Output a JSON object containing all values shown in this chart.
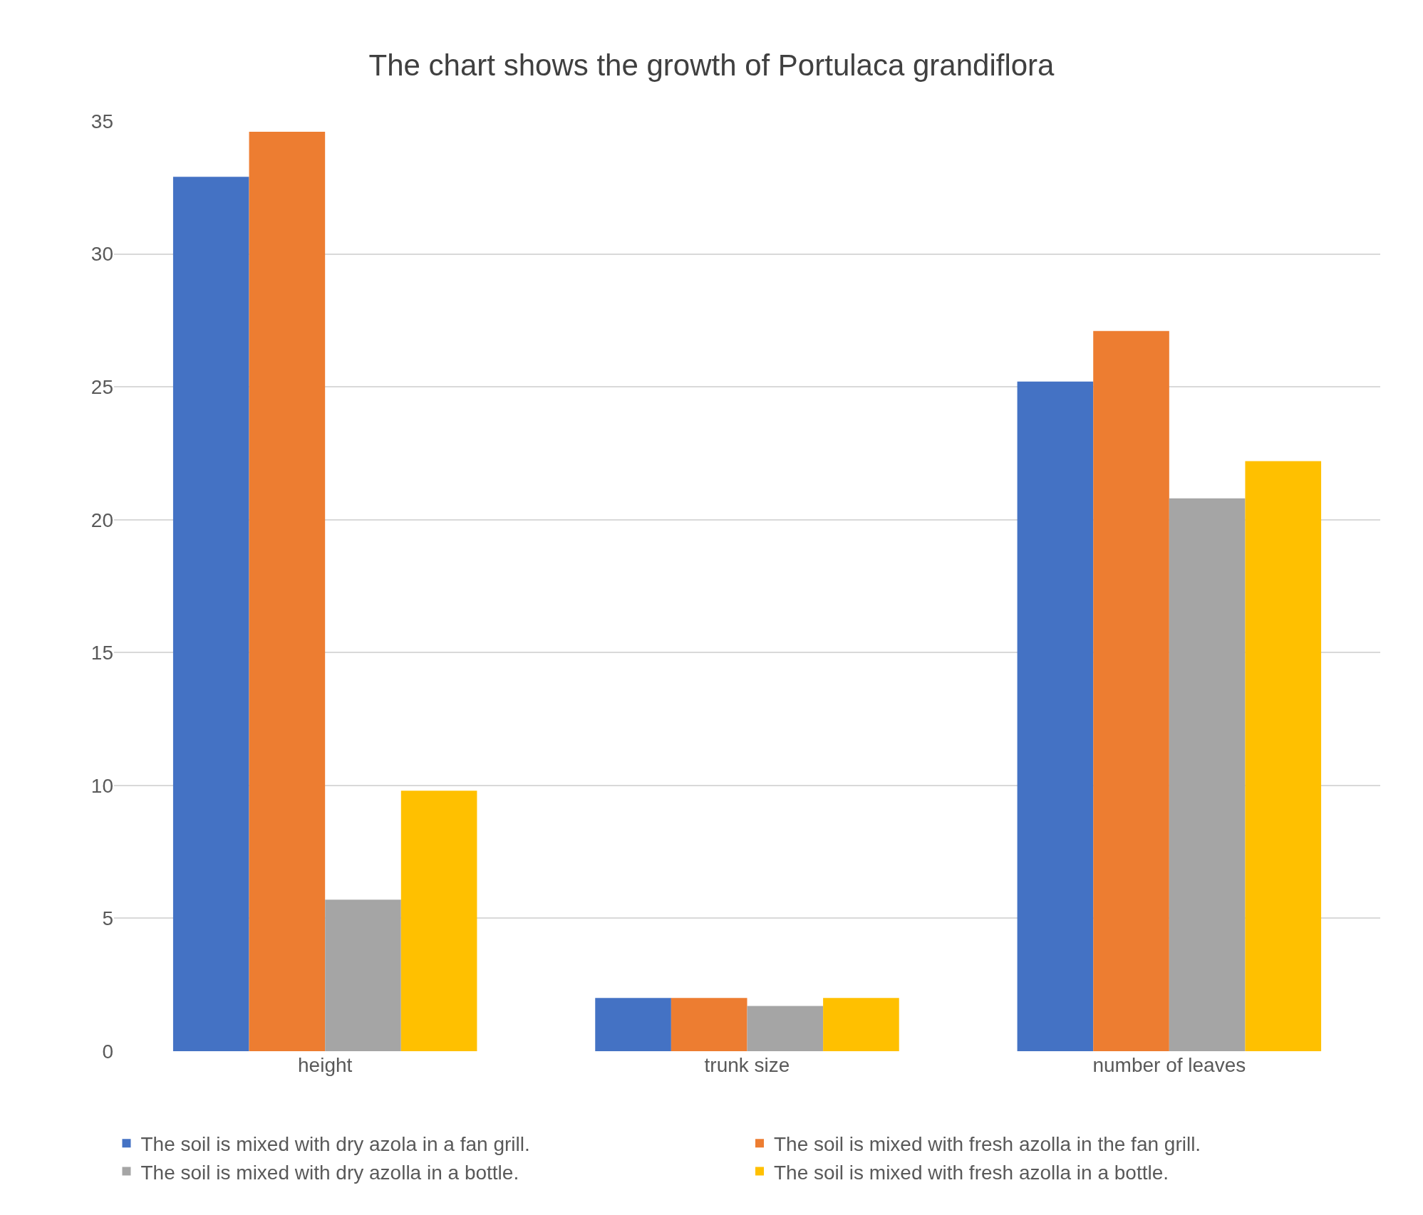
{
  "chart_data": {
    "type": "bar",
    "title": "The chart shows the growth of Portulaca grandiflora",
    "categories": [
      "height",
      "trunk size",
      "number of leaves"
    ],
    "series": [
      {
        "name": "The soil is mixed with dry azola in a fan grill.",
        "color": "#4472c4",
        "values": [
          32.9,
          2,
          25.2
        ]
      },
      {
        "name": "The soil is mixed with fresh azolla in the fan grill.",
        "color": "#ed7d31",
        "values": [
          34.6,
          2,
          27.1
        ]
      },
      {
        "name": "The soil is mixed with dry azolla in a bottle.",
        "color": "#a5a5a5",
        "values": [
          5.7,
          1.7,
          20.8
        ]
      },
      {
        "name": "The soil is mixed with fresh azolla in a bottle.",
        "color": "#ffc000",
        "values": [
          9.8,
          2,
          22.2
        ]
      }
    ],
    "ylim": [
      0,
      35
    ],
    "yticks": [
      0,
      5,
      10,
      15,
      20,
      25,
      30,
      35
    ],
    "grid": "y",
    "legend": "bottom"
  }
}
